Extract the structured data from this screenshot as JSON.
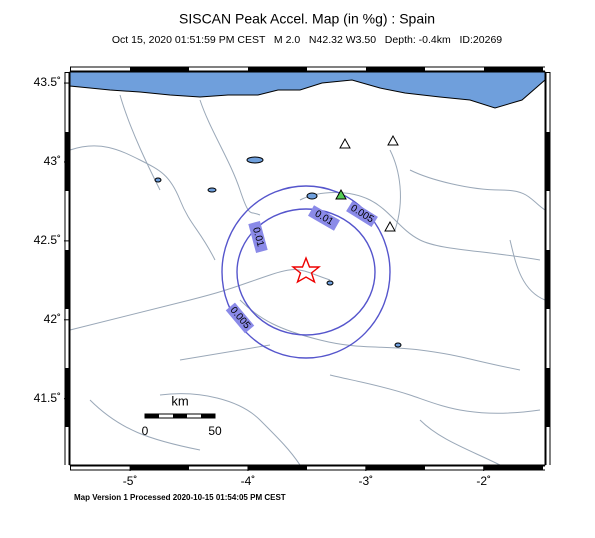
{
  "title": "SISCAN Peak Accel. Map (in %g) : Spain",
  "subtitle": "Oct 15, 2020 01:51:59 PM CEST   M 2.0   N42.32 W3.50   Depth: -0.4km   ID:20269",
  "map": {
    "xlim": [
      -5.51,
      -1.48
    ],
    "ylim": [
      41.08,
      43.57
    ],
    "xticks": [
      {
        "value": -5,
        "label": "-5˚"
      },
      {
        "value": -4,
        "label": "-4˚"
      },
      {
        "value": -3,
        "label": "-3˚"
      },
      {
        "value": -2,
        "label": "-2˚"
      }
    ],
    "yticks": [
      {
        "value": 43.5,
        "label": "43.5˚"
      },
      {
        "value": 43,
        "label": "43˚"
      },
      {
        "value": 42.5,
        "label": "42.5˚"
      },
      {
        "value": 42,
        "label": "42˚"
      },
      {
        "value": 41.5,
        "label": "41.5˚"
      }
    ],
    "contour_labels": [
      "0.005",
      "0.01",
      "0.01",
      "0.005"
    ]
  },
  "scale_bar": {
    "unit": "km",
    "labels": [
      "0",
      "50"
    ]
  },
  "footer": "Map Version 1 Processed 2020-10-15 01:54:05 PM CEST"
}
